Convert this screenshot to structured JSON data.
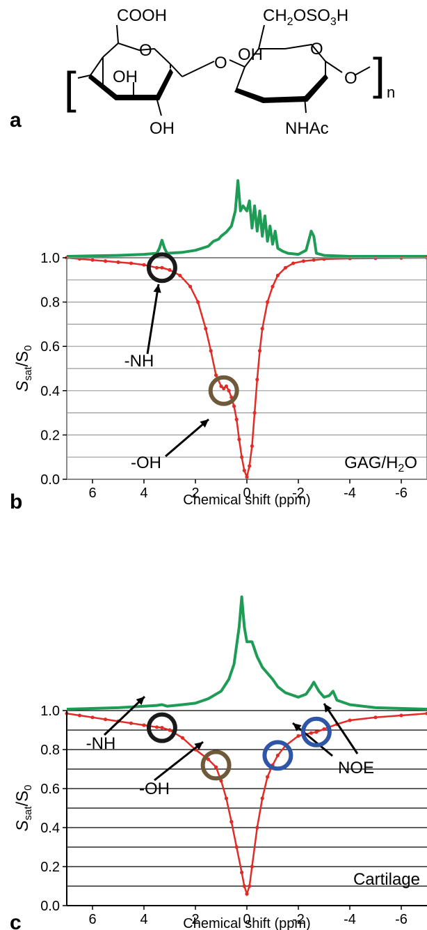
{
  "panel_labels": {
    "a": "a",
    "b": "b",
    "c": "c"
  },
  "structure": {
    "cooh": "COOH",
    "ch2oso3h_main": "CH",
    "ch2oso3h_sub2": "2",
    "ch2oso3h_mid": "OSO",
    "ch2oso3h_sub3": "3",
    "ch2oso3h_end": "H",
    "oh_bridge": "OH",
    "ring_o1": "O",
    "ring_o2": "O",
    "link_o": "O",
    "end_o": "O",
    "oh_ring": "OH",
    "oh_bottom": "OH",
    "nhac": "NHAc",
    "bracket_left": "[",
    "bracket_right": "]",
    "repeat_n": "n"
  },
  "chart_data": [
    {
      "type": "line",
      "panel": "b",
      "sample_label_main": "GAG/H",
      "sample_label_sub": "2",
      "sample_label_end": "O",
      "xlabel": "Chemical shift (ppm)",
      "ylabel_main": "S",
      "ylabel_sub": "sat",
      "ylabel_slash": "/S",
      "ylabel_sub0": "0",
      "x_reversed": true,
      "xlim": [
        7,
        -7
      ],
      "ylim": [
        0,
        1.0
      ],
      "xticks": [
        "6",
        "4",
        "2",
        "0",
        "-2",
        "-4",
        "-6"
      ],
      "yticks": [
        "0.0",
        "0.2",
        "0.4",
        "0.6",
        "0.8",
        "1.0"
      ],
      "series": [
        {
          "role": "z-spectrum",
          "color": "#e02b27",
          "x": [
            7.0,
            6.5,
            6.0,
            5.5,
            5.0,
            4.5,
            4.0,
            3.5,
            3.3,
            3.0,
            2.6,
            2.2,
            1.9,
            1.6,
            1.4,
            1.2,
            1.0,
            0.9,
            0.8,
            0.7,
            0.6,
            0.5,
            0.4,
            0.3,
            0.2,
            0.1,
            0.0,
            -0.1,
            -0.2,
            -0.3,
            -0.4,
            -0.5,
            -0.6,
            -0.8,
            -1.0,
            -1.2,
            -1.5,
            -1.8,
            -2.2,
            -2.6,
            -3.0,
            -4.0,
            -5.0,
            -6.0,
            -7.0
          ],
          "y": [
            1.0,
            0.995,
            0.99,
            0.985,
            0.98,
            0.975,
            0.968,
            0.955,
            0.955,
            0.945,
            0.92,
            0.87,
            0.8,
            0.68,
            0.58,
            0.47,
            0.42,
            0.41,
            0.42,
            0.4,
            0.37,
            0.33,
            0.27,
            0.18,
            0.1,
            0.04,
            0.01,
            0.06,
            0.15,
            0.3,
            0.45,
            0.58,
            0.68,
            0.8,
            0.87,
            0.92,
            0.955,
            0.975,
            0.985,
            0.99,
            0.994,
            0.997,
            0.998,
            0.999,
            1.0
          ]
        },
        {
          "role": "NMR spectrum (offset above)",
          "color": "#1e9b55",
          "x": [
            7.0,
            5.0,
            4.0,
            3.5,
            3.4,
            3.3,
            3.2,
            3.1,
            2.5,
            2.0,
            1.5,
            1.3,
            1.1,
            1.0,
            0.8,
            0.6,
            0.45,
            0.35,
            0.25,
            0.15,
            0.0,
            -0.1,
            -0.2,
            -0.3,
            -0.4,
            -0.5,
            -0.6,
            -0.7,
            -0.8,
            -0.9,
            -1.0,
            -1.1,
            -1.2,
            -1.4,
            -1.6,
            -2.0,
            -2.3,
            -2.45,
            -2.5,
            -2.6,
            -2.7,
            -3.0,
            -4.0,
            -7.0
          ],
          "y": [
            0.0,
            0.01,
            0.02,
            0.03,
            0.08,
            0.16,
            0.08,
            0.03,
            0.04,
            0.06,
            0.1,
            0.15,
            0.17,
            0.2,
            0.24,
            0.3,
            0.45,
            0.75,
            0.45,
            0.5,
            0.45,
            0.55,
            0.28,
            0.5,
            0.25,
            0.45,
            0.2,
            0.4,
            0.15,
            0.3,
            0.12,
            0.25,
            0.08,
            0.05,
            0.03,
            0.02,
            0.06,
            0.2,
            0.25,
            0.2,
            0.03,
            0.01,
            0.0,
            0.0
          ]
        }
      ],
      "annotations": [
        {
          "text": "-NH",
          "x": 3.3,
          "y": 0.955,
          "circle_color": "#1a1a1a"
        },
        {
          "text": "-OH",
          "x": 0.9,
          "y": 0.4,
          "circle_color": "#6e5a3a"
        }
      ]
    },
    {
      "type": "line",
      "panel": "c",
      "sample_label": "Cartilage",
      "xlabel": "Chemical shift (ppm)",
      "ylabel_main": "S",
      "ylabel_sub": "sat",
      "ylabel_slash": "/S",
      "ylabel_sub0": "0",
      "x_reversed": true,
      "xlim": [
        7,
        -7
      ],
      "ylim": [
        0,
        1.0
      ],
      "xticks": [
        "6",
        "4",
        "2",
        "0",
        "-2",
        "-4",
        "-6"
      ],
      "yticks": [
        "0.0",
        "0.2",
        "0.4",
        "0.6",
        "0.8",
        "1.0"
      ],
      "series": [
        {
          "role": "z-spectrum",
          "color": "#e02b27",
          "x": [
            7.0,
            6.5,
            6.0,
            5.5,
            5.0,
            4.5,
            4.0,
            3.5,
            3.3,
            3.0,
            2.5,
            2.0,
            1.5,
            1.2,
            1.0,
            0.8,
            0.6,
            0.4,
            0.2,
            0.1,
            0.0,
            -0.1,
            -0.2,
            -0.4,
            -0.6,
            -0.8,
            -1.0,
            -1.2,
            -1.5,
            -2.0,
            -2.5,
            -2.7,
            -3.0,
            -3.5,
            -4.0,
            -5.0,
            -6.0,
            -7.0
          ],
          "y": [
            0.985,
            0.975,
            0.965,
            0.955,
            0.945,
            0.935,
            0.925,
            0.915,
            0.912,
            0.9,
            0.86,
            0.8,
            0.75,
            0.71,
            0.64,
            0.55,
            0.43,
            0.3,
            0.17,
            0.1,
            0.06,
            0.1,
            0.2,
            0.4,
            0.55,
            0.66,
            0.72,
            0.77,
            0.82,
            0.87,
            0.885,
            0.89,
            0.905,
            0.93,
            0.95,
            0.965,
            0.975,
            0.985
          ]
        },
        {
          "role": "NMR spectrum (offset above)",
          "color": "#1e9b55",
          "x": [
            7.0,
            5.0,
            4.0,
            3.5,
            3.3,
            3.1,
            2.5,
            2.0,
            1.5,
            1.0,
            0.7,
            0.5,
            0.3,
            0.2,
            0.1,
            0.0,
            -0.2,
            -0.4,
            -0.6,
            -0.8,
            -1.0,
            -1.2,
            -1.5,
            -2.0,
            -2.3,
            -2.5,
            -2.6,
            -2.8,
            -3.0,
            -3.2,
            -3.35,
            -3.5,
            -4.0,
            -5.0,
            -7.0
          ],
          "y": [
            0.0,
            0.01,
            0.02,
            0.025,
            0.03,
            0.02,
            0.03,
            0.04,
            0.07,
            0.12,
            0.2,
            0.3,
            0.55,
            0.75,
            0.55,
            0.45,
            0.45,
            0.35,
            0.28,
            0.24,
            0.2,
            0.15,
            0.11,
            0.08,
            0.1,
            0.15,
            0.18,
            0.12,
            0.08,
            0.09,
            0.12,
            0.06,
            0.03,
            0.01,
            0.0
          ]
        }
      ],
      "annotations": [
        {
          "text": "-NH",
          "x": 3.3,
          "y": 0.912,
          "circle_color": "#1a1a1a"
        },
        {
          "text": "-OH",
          "x": 1.2,
          "y": 0.72,
          "circle_color": "#6e5a3a"
        },
        {
          "text": "NOE",
          "x": -1.2,
          "y": 0.77,
          "circle_color": "#2f56a6"
        },
        {
          "text": "NOE",
          "x": -2.7,
          "y": 0.89,
          "circle_color": "#2f56a6"
        }
      ]
    }
  ]
}
